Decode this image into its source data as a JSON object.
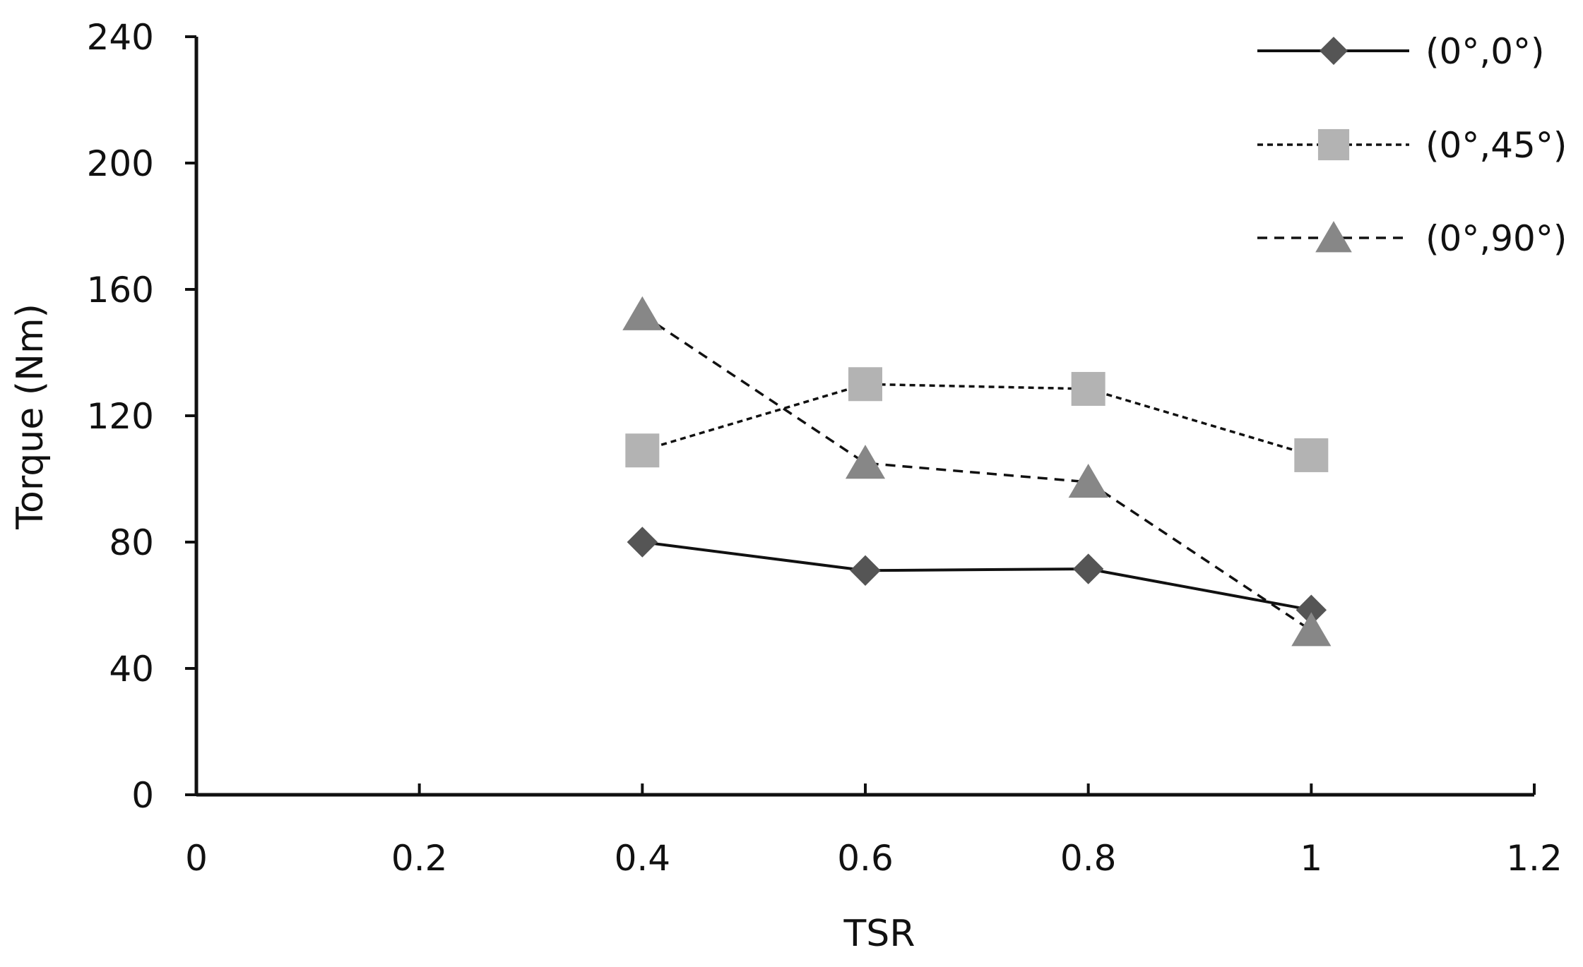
{
  "chart_data": {
    "type": "line",
    "title": "",
    "xlabel": "TSR",
    "ylabel": "Torque (Nm)",
    "xlim": [
      0,
      1.2
    ],
    "ylim": [
      0,
      240
    ],
    "xticks": [
      0,
      0.2,
      0.4,
      0.6,
      0.8,
      1,
      1.2
    ],
    "yticks": [
      0,
      40,
      80,
      120,
      160,
      200,
      240
    ],
    "xtick_labels": [
      "0",
      "0.2",
      "0.4",
      "0.6",
      "0.8",
      "1",
      "1.2"
    ],
    "ytick_labels": [
      "0",
      "40",
      "80",
      "120",
      "160",
      "200",
      "240"
    ],
    "grid": false,
    "legend_position": "top-right",
    "series": [
      {
        "name": "(0°,0°)",
        "marker": "diamond",
        "line_style": "solid",
        "color": "#555555",
        "x": [
          0.4,
          0.6,
          0.8,
          1.0
        ],
        "y": [
          80,
          71,
          71.5,
          58.5
        ]
      },
      {
        "name": "(0°,45°)",
        "marker": "square",
        "line_style": "dotted",
        "color": "#b3b3b3",
        "x": [
          0.4,
          0.6,
          0.8,
          1.0
        ],
        "y": [
          109,
          130,
          128.5,
          107.5
        ]
      },
      {
        "name": "(0°,90°)",
        "marker": "triangle",
        "line_style": "dashed",
        "color": "#878787",
        "x": [
          0.4,
          0.6,
          0.8,
          1.0
        ],
        "y": [
          152,
          105,
          99,
          52
        ]
      }
    ]
  }
}
